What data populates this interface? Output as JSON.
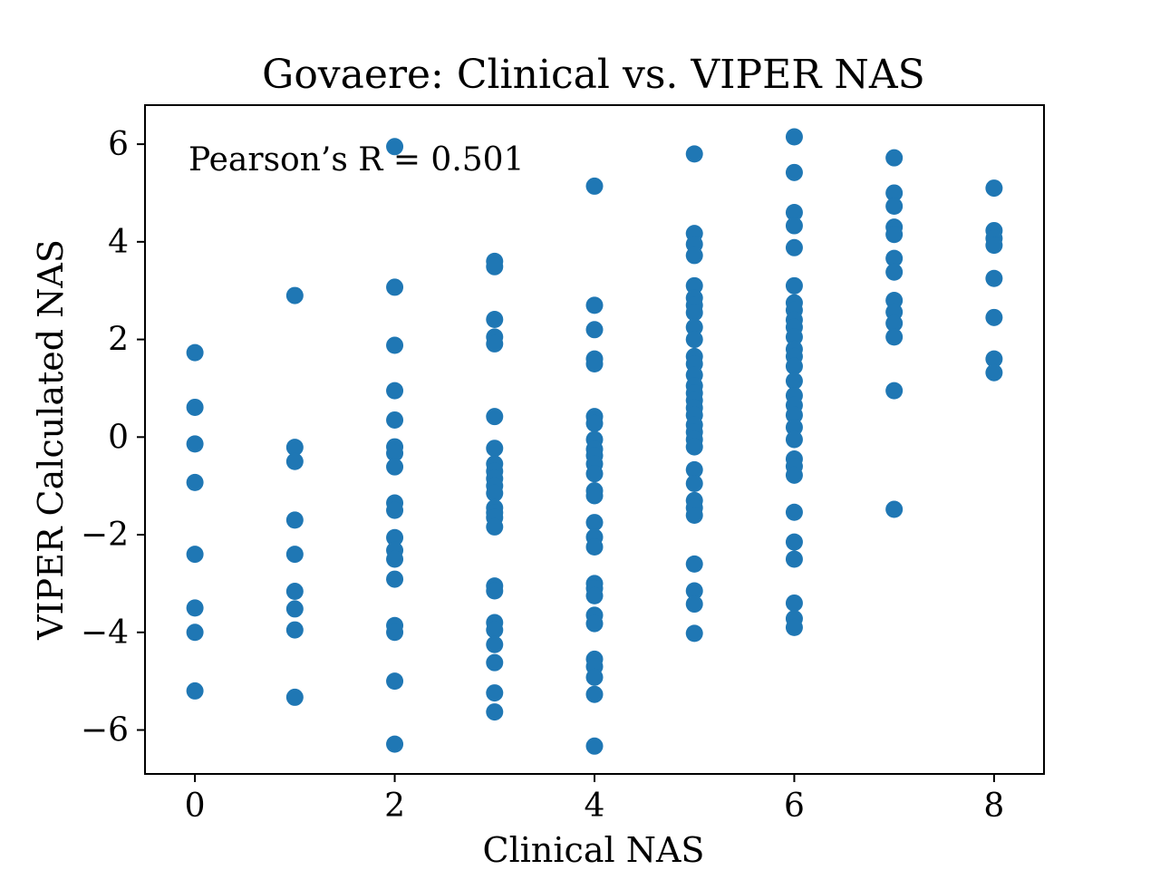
{
  "chart_data": {
    "type": "scatter",
    "title": "Govaere: Clinical vs. VIPER NAS",
    "xlabel": "Clinical NAS",
    "ylabel": "VIPER Calculated NAS",
    "annotation": "Pearson’s R = 0.501",
    "xlim": [
      -0.5,
      8.5
    ],
    "ylim": [
      -6.9,
      6.8
    ],
    "xticks": [
      0,
      2,
      4,
      6,
      8
    ],
    "yticks": [
      -6,
      -4,
      -2,
      0,
      2,
      4,
      6
    ],
    "xtick_labels": [
      "0",
      "2",
      "4",
      "6",
      "8"
    ],
    "ytick_labels": [
      "−6",
      "−4",
      "−2",
      "0",
      "2",
      "4",
      "6"
    ],
    "grid": false,
    "marker_color": "#1f77b4",
    "points": [
      {
        "x": 0,
        "y": 1.73
      },
      {
        "x": 0,
        "y": 0.61
      },
      {
        "x": 0,
        "y": -0.14
      },
      {
        "x": 0,
        "y": -0.93
      },
      {
        "x": 0,
        "y": -2.4
      },
      {
        "x": 0,
        "y": -3.5
      },
      {
        "x": 0,
        "y": -4.0
      },
      {
        "x": 0,
        "y": -5.2
      },
      {
        "x": 1,
        "y": 2.9
      },
      {
        "x": 1,
        "y": -0.21
      },
      {
        "x": 1,
        "y": -0.5
      },
      {
        "x": 1,
        "y": -1.7
      },
      {
        "x": 1,
        "y": -2.4
      },
      {
        "x": 1,
        "y": -3.16
      },
      {
        "x": 1,
        "y": -3.52
      },
      {
        "x": 1,
        "y": -3.95
      },
      {
        "x": 1,
        "y": -5.33
      },
      {
        "x": 2,
        "y": 5.95
      },
      {
        "x": 2,
        "y": 3.07
      },
      {
        "x": 2,
        "y": 1.88
      },
      {
        "x": 2,
        "y": 0.95
      },
      {
        "x": 2,
        "y": 0.35
      },
      {
        "x": 2,
        "y": -0.2
      },
      {
        "x": 2,
        "y": -0.33
      },
      {
        "x": 2,
        "y": -0.61
      },
      {
        "x": 2,
        "y": -1.35
      },
      {
        "x": 2,
        "y": -1.5
      },
      {
        "x": 2,
        "y": -2.06
      },
      {
        "x": 2,
        "y": -2.32
      },
      {
        "x": 2,
        "y": -2.5
      },
      {
        "x": 2,
        "y": -2.91
      },
      {
        "x": 2,
        "y": -3.86
      },
      {
        "x": 2,
        "y": -4.0
      },
      {
        "x": 2,
        "y": -5.0
      },
      {
        "x": 2,
        "y": -6.29
      },
      {
        "x": 3,
        "y": 3.6
      },
      {
        "x": 3,
        "y": 3.49
      },
      {
        "x": 3,
        "y": 2.41
      },
      {
        "x": 3,
        "y": 2.05
      },
      {
        "x": 3,
        "y": 1.91
      },
      {
        "x": 3,
        "y": 0.42
      },
      {
        "x": 3,
        "y": -0.23
      },
      {
        "x": 3,
        "y": -0.55
      },
      {
        "x": 3,
        "y": -0.7
      },
      {
        "x": 3,
        "y": -0.85
      },
      {
        "x": 3,
        "y": -1.0
      },
      {
        "x": 3,
        "y": -1.15
      },
      {
        "x": 3,
        "y": -1.45
      },
      {
        "x": 3,
        "y": -1.55
      },
      {
        "x": 3,
        "y": -1.65
      },
      {
        "x": 3,
        "y": -1.84
      },
      {
        "x": 3,
        "y": -3.05
      },
      {
        "x": 3,
        "y": -3.15
      },
      {
        "x": 3,
        "y": -3.8
      },
      {
        "x": 3,
        "y": -3.95
      },
      {
        "x": 3,
        "y": -4.25
      },
      {
        "x": 3,
        "y": -4.62
      },
      {
        "x": 3,
        "y": -5.24
      },
      {
        "x": 3,
        "y": -5.63
      },
      {
        "x": 4,
        "y": 5.14
      },
      {
        "x": 4,
        "y": 2.7
      },
      {
        "x": 4,
        "y": 2.2
      },
      {
        "x": 4,
        "y": 1.6
      },
      {
        "x": 4,
        "y": 1.5
      },
      {
        "x": 4,
        "y": 0.42
      },
      {
        "x": 4,
        "y": 0.28
      },
      {
        "x": 4,
        "y": -0.05
      },
      {
        "x": 4,
        "y": -0.25
      },
      {
        "x": 4,
        "y": -0.38
      },
      {
        "x": 4,
        "y": -0.55
      },
      {
        "x": 4,
        "y": -0.75
      },
      {
        "x": 4,
        "y": -1.1
      },
      {
        "x": 4,
        "y": -1.2
      },
      {
        "x": 4,
        "y": -1.75
      },
      {
        "x": 4,
        "y": -2.05
      },
      {
        "x": 4,
        "y": -2.25
      },
      {
        "x": 4,
        "y": -3.0
      },
      {
        "x": 4,
        "y": -3.1
      },
      {
        "x": 4,
        "y": -3.25
      },
      {
        "x": 4,
        "y": -3.65
      },
      {
        "x": 4,
        "y": -3.82
      },
      {
        "x": 4,
        "y": -4.55
      },
      {
        "x": 4,
        "y": -4.7
      },
      {
        "x": 4,
        "y": -4.92
      },
      {
        "x": 4,
        "y": -5.27
      },
      {
        "x": 4,
        "y": -6.33
      },
      {
        "x": 5,
        "y": 5.8
      },
      {
        "x": 5,
        "y": 4.17
      },
      {
        "x": 5,
        "y": 3.95
      },
      {
        "x": 5,
        "y": 3.72
      },
      {
        "x": 5,
        "y": 3.1
      },
      {
        "x": 5,
        "y": 2.85
      },
      {
        "x": 5,
        "y": 2.7
      },
      {
        "x": 5,
        "y": 2.55
      },
      {
        "x": 5,
        "y": 2.25
      },
      {
        "x": 5,
        "y": 2.0
      },
      {
        "x": 5,
        "y": 1.65
      },
      {
        "x": 5,
        "y": 1.5
      },
      {
        "x": 5,
        "y": 1.27
      },
      {
        "x": 5,
        "y": 1.05
      },
      {
        "x": 5,
        "y": 0.9
      },
      {
        "x": 5,
        "y": 0.75
      },
      {
        "x": 5,
        "y": 0.6
      },
      {
        "x": 5,
        "y": 0.45
      },
      {
        "x": 5,
        "y": 0.25
      },
      {
        "x": 5,
        "y": 0.1
      },
      {
        "x": 5,
        "y": -0.05
      },
      {
        "x": 5,
        "y": -0.2
      },
      {
        "x": 5,
        "y": -0.67
      },
      {
        "x": 5,
        "y": -0.95
      },
      {
        "x": 5,
        "y": -1.3
      },
      {
        "x": 5,
        "y": -1.45
      },
      {
        "x": 5,
        "y": -1.6
      },
      {
        "x": 5,
        "y": -2.6
      },
      {
        "x": 5,
        "y": -3.15
      },
      {
        "x": 5,
        "y": -3.42
      },
      {
        "x": 5,
        "y": -4.02
      },
      {
        "x": 6,
        "y": 6.15
      },
      {
        "x": 6,
        "y": 5.42
      },
      {
        "x": 6,
        "y": 4.6
      },
      {
        "x": 6,
        "y": 4.33
      },
      {
        "x": 6,
        "y": 3.88
      },
      {
        "x": 6,
        "y": 3.1
      },
      {
        "x": 6,
        "y": 2.75
      },
      {
        "x": 6,
        "y": 2.6
      },
      {
        "x": 6,
        "y": 2.4
      },
      {
        "x": 6,
        "y": 2.25
      },
      {
        "x": 6,
        "y": 2.05
      },
      {
        "x": 6,
        "y": 1.8
      },
      {
        "x": 6,
        "y": 1.65
      },
      {
        "x": 6,
        "y": 1.45
      },
      {
        "x": 6,
        "y": 1.15
      },
      {
        "x": 6,
        "y": 0.85
      },
      {
        "x": 6,
        "y": 0.65
      },
      {
        "x": 6,
        "y": 0.45
      },
      {
        "x": 6,
        "y": 0.2
      },
      {
        "x": 6,
        "y": -0.05
      },
      {
        "x": 6,
        "y": -0.45
      },
      {
        "x": 6,
        "y": -0.6
      },
      {
        "x": 6,
        "y": -0.78
      },
      {
        "x": 6,
        "y": -1.54
      },
      {
        "x": 6,
        "y": -2.15
      },
      {
        "x": 6,
        "y": -2.5
      },
      {
        "x": 6,
        "y": -3.4
      },
      {
        "x": 6,
        "y": -3.72
      },
      {
        "x": 6,
        "y": -3.9
      },
      {
        "x": 7,
        "y": 5.72
      },
      {
        "x": 7,
        "y": 5.0
      },
      {
        "x": 7,
        "y": 4.73
      },
      {
        "x": 7,
        "y": 4.3
      },
      {
        "x": 7,
        "y": 4.15
      },
      {
        "x": 7,
        "y": 3.66
      },
      {
        "x": 7,
        "y": 3.38
      },
      {
        "x": 7,
        "y": 2.8
      },
      {
        "x": 7,
        "y": 2.56
      },
      {
        "x": 7,
        "y": 2.33
      },
      {
        "x": 7,
        "y": 2.05
      },
      {
        "x": 7,
        "y": 0.95
      },
      {
        "x": 7,
        "y": -1.48
      },
      {
        "x": 8,
        "y": 5.1
      },
      {
        "x": 8,
        "y": 4.23
      },
      {
        "x": 8,
        "y": 4.07
      },
      {
        "x": 8,
        "y": 3.93
      },
      {
        "x": 8,
        "y": 3.25
      },
      {
        "x": 8,
        "y": 2.45
      },
      {
        "x": 8,
        "y": 1.6
      },
      {
        "x": 8,
        "y": 1.32
      }
    ]
  }
}
